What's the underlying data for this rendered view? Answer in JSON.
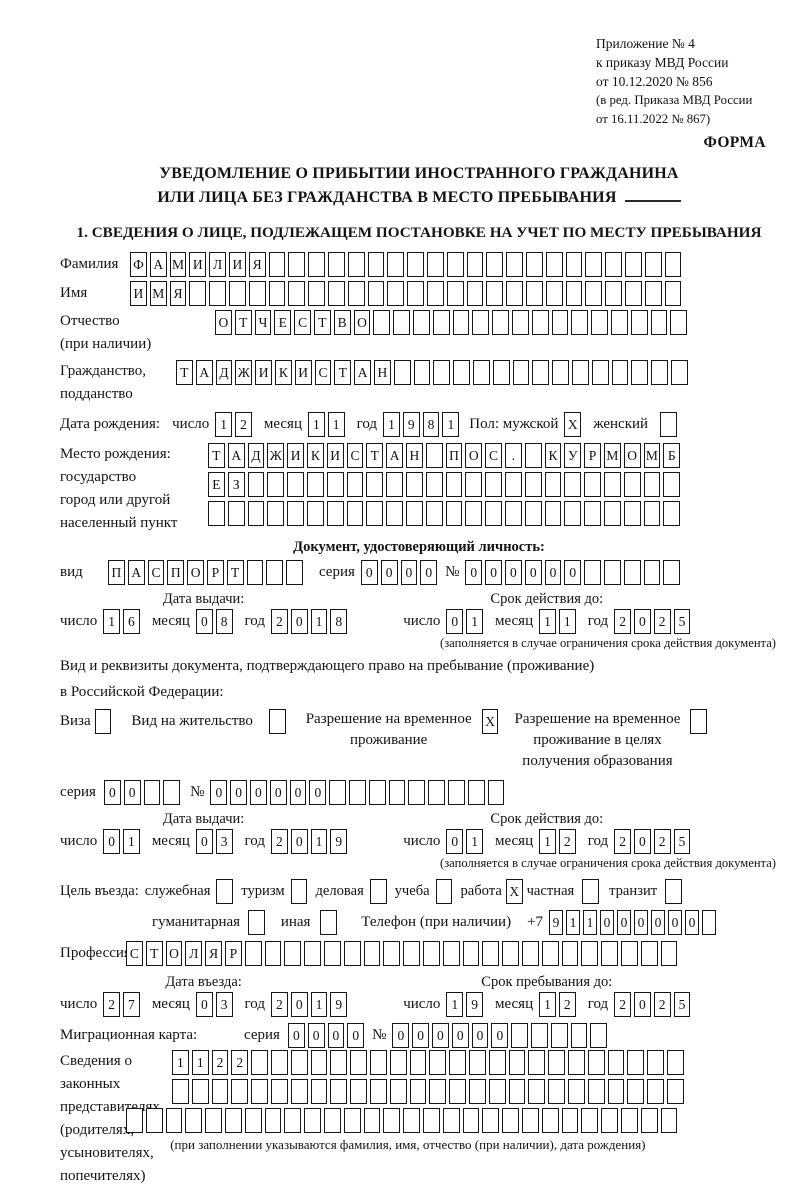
{
  "doc_ref": {
    "line1": "Приложение № 4",
    "line2": "к приказу МВД России",
    "line3": "от 10.12.2020 № 856",
    "line4": "(в ред. Приказа МВД России",
    "line5": "от 16.11.2022 № 867)",
    "form_label": "ФОРМА"
  },
  "title": {
    "line1": "УВЕДОМЛЕНИЕ О ПРИБЫТИИ ИНОСТРАННОГО ГРАЖДАНИНА",
    "line2": "ИЛИ ЛИЦА БЕЗ ГРАЖДАНСТВА В МЕСТО ПРЕБЫВАНИЯ"
  },
  "section1": {
    "heading": "1. СВЕДЕНИЯ О ЛИЦЕ, ПОДЛЕЖАЩЕМ ПОСТАНОВКЕ НА УЧЕТ ПО МЕСТУ ПРЕБЫВАНИЯ"
  },
  "surname": {
    "label": "Фамилия",
    "cells": {
      "value": "ФАМИЛИЯ",
      "len": 28
    }
  },
  "firstname": {
    "label": "Имя",
    "cells": {
      "value": "ИМЯ",
      "len": 28
    }
  },
  "patronymic": {
    "label": "Отчество",
    "label_note": "(при наличии)",
    "cells": {
      "value": "ОТЧЕСТВО",
      "len": 24
    }
  },
  "citizenship": {
    "label1": "Гражданство,",
    "label2": "подданство",
    "cells": {
      "value": "ТАДЖИКИСТАН",
      "len": 26
    }
  },
  "birth": {
    "date_label": "Дата рождения:",
    "day_label": "число",
    "day": {
      "value": "12",
      "len": 2
    },
    "month_label": "месяц",
    "month": {
      "value": "11",
      "len": 2
    },
    "year_label": "год",
    "year": {
      "value": "1981",
      "len": 4
    },
    "sex_label": "Пол: мужской",
    "male": {
      "value": "X",
      "len": 1
    },
    "female_label": "женский",
    "female": {
      "value": "",
      "len": 1
    },
    "place_label": "Место рождения:",
    "place_sub1": "государство",
    "place_sub2": "город или другой",
    "place_sub3": "населенный пункт",
    "place_row1": {
      "value": "ТАДЖИКИСТАН ПОС. КУРМОМБ",
      "len": 24
    },
    "place_row2": {
      "value": "ЕЗ",
      "len": 24
    },
    "place_row3": {
      "value": "",
      "len": 24
    }
  },
  "identity_doc": {
    "heading": "Документ, удостоверяющий личность:",
    "kind_label": "вид",
    "kind": {
      "value": "ПАСПОРТ",
      "len": 10
    },
    "series_label": "серия",
    "series": {
      "value": "0000",
      "len": 4
    },
    "number_sign": "№",
    "number": {
      "value": "000000",
      "len": 11
    },
    "issue_heading": "Дата выдачи:",
    "issue_day_label": "число",
    "issue_day": {
      "value": "16",
      "len": 2
    },
    "issue_month_label": "месяц",
    "issue_month": {
      "value": "08",
      "len": 2
    },
    "issue_year_label": "год",
    "issue_year": {
      "value": "2018",
      "len": 4
    },
    "expiry_heading": "Срок действия до:",
    "expiry_day_label": "число",
    "expiry_day": {
      "value": "01",
      "len": 2
    },
    "expiry_month_label": "месяц",
    "expiry_month": {
      "value": "11",
      "len": 2
    },
    "expiry_year_label": "год",
    "expiry_year": {
      "value": "2025",
      "len": 4
    },
    "note": "(заполняется в случае ограничения срока действия документа)"
  },
  "stay_doc": {
    "intro1": "Вид и реквизиты документа, подтверждающего право на пребывание (проживание)",
    "intro2": "в Российской Федерации:",
    "visa_label": "Виза",
    "visa": {
      "value": "",
      "len": 1
    },
    "residence_label": "Вид на жительство",
    "residence": {
      "value": "",
      "len": 1
    },
    "rvp_label1": "Разрешение на временное",
    "rvp_label2": "проживание",
    "rvp": {
      "value": "X",
      "len": 1
    },
    "rvp_edu_label1": "Разрешение на временное",
    "rvp_edu_label2": "проживание в целях",
    "rvp_edu_label3": "получения образования",
    "rvp_edu": {
      "value": "",
      "len": 1
    },
    "series_label": "серия",
    "series": {
      "value": "00",
      "len": 4
    },
    "number_sign": "№",
    "number": {
      "value": "000000",
      "len": 15
    },
    "issue_heading": "Дата выдачи:",
    "issue_day_label": "число",
    "issue_day": {
      "value": "01",
      "len": 2
    },
    "issue_month_label": "месяц",
    "issue_month": {
      "value": "03",
      "len": 2
    },
    "issue_year_label": "год",
    "issue_year": {
      "value": "2019",
      "len": 4
    },
    "expiry_heading": "Срок действия до:",
    "expiry_day_label": "число",
    "expiry_day": {
      "value": "01",
      "len": 2
    },
    "expiry_month_label": "месяц",
    "expiry_month": {
      "value": "12",
      "len": 2
    },
    "expiry_year_label": "год",
    "expiry_year": {
      "value": "2025",
      "len": 4
    },
    "note": "(заполняется в случае ограничения срока действия документа)"
  },
  "purpose": {
    "label": "Цель въезда:",
    "opt1_label": "служебная",
    "opt1": {
      "value": "",
      "len": 1
    },
    "opt2_label": "туризм",
    "opt2": {
      "value": "",
      "len": 1
    },
    "opt3_label": "деловая",
    "opt3": {
      "value": "",
      "len": 1
    },
    "opt4_label": "учеба",
    "opt4": {
      "value": "",
      "len": 1
    },
    "opt5_label": "работа",
    "opt5": {
      "value": "X",
      "len": 1
    },
    "opt6_label": "частная",
    "opt6": {
      "value": "",
      "len": 1
    },
    "opt7_label": "транзит",
    "opt7": {
      "value": "",
      "len": 1
    },
    "opt8_label": "гуманитарная",
    "opt8": {
      "value": "",
      "len": 1
    },
    "opt9_label": "иная",
    "opt9": {
      "value": "",
      "len": 1
    },
    "phone_label": "Телефон (при наличии)",
    "phone_prefix": "+7",
    "phone": {
      "value": "911000000",
      "len": 10
    }
  },
  "profession": {
    "label": "Профессия",
    "cells": {
      "value": "СТОЛЯР",
      "len": 28
    }
  },
  "entry": {
    "date_heading": "Дата въезда:",
    "day_label": "число",
    "day": {
      "value": "27",
      "len": 2
    },
    "month_label": "месяц",
    "month": {
      "value": "03",
      "len": 2
    },
    "year_label": "год",
    "year": {
      "value": "2019",
      "len": 4
    },
    "until_heading": "Срок пребывания до:",
    "until_day_label": "число",
    "until_day": {
      "value": "19",
      "len": 2
    },
    "until_month_label": "месяц",
    "until_month": {
      "value": "12",
      "len": 2
    },
    "until_year_label": "год",
    "until_year": {
      "value": "2025",
      "len": 4
    }
  },
  "migration_card": {
    "label": "Миграционная карта:",
    "series_label": "серия",
    "series": {
      "value": "0000",
      "len": 4
    },
    "number_sign": "№",
    "number": {
      "value": "000000",
      "len": 11
    }
  },
  "representatives": {
    "label1": "Сведения о",
    "label2": "законных",
    "label3": "представителях",
    "label4": "(родителях,",
    "label5": "усыновителях,",
    "label6": "попечителях)",
    "row1": {
      "value": "1122",
      "len": 26
    },
    "row2": {
      "value": "",
      "len": 26
    },
    "row3": {
      "value": "",
      "len": 28
    },
    "note": "(при заполнении указываются фамилия, имя, отчество (при наличии), дата рождения)"
  }
}
